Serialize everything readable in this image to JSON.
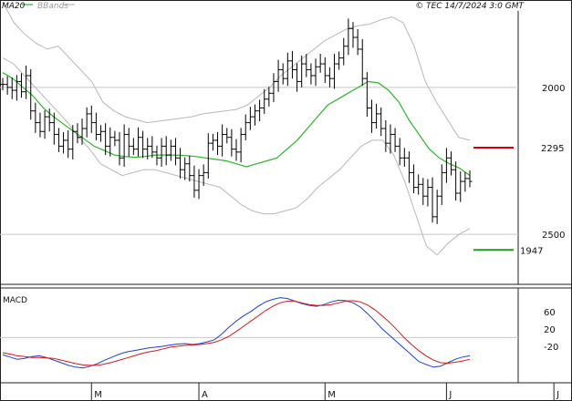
{
  "header": {
    "legend_ma": "MA20",
    "legend_bb": "BBands",
    "copyright": "© TEC 14/7/2024 3:0 GMT"
  },
  "colors": {
    "ma": "#2db52d",
    "bands": "#b8b8b8",
    "resistance": "#d40000",
    "support": "#1f9a1f",
    "macd": "#1f3fd0",
    "signal": "#d81818",
    "price": "#000000"
  },
  "chart_data": [
    {
      "type": "ohlc",
      "panel": "price",
      "ylim": [
        1830,
        2760
      ],
      "grid_y": [
        2000,
        2500
      ],
      "y_ticks": [
        "2500",
        "2000"
      ],
      "x_tick_labels": [
        "M",
        "A",
        "M",
        "J",
        "J"
      ],
      "x_tick_index": [
        19,
        42,
        69,
        95,
        118
      ],
      "levels": [
        {
          "label": "2295",
          "value": 2295,
          "color_key": "resistance"
        },
        {
          "label": "1947",
          "value": 1947,
          "color_key": "support"
        }
      ],
      "closes": [
        2510,
        2500,
        2490,
        2520,
        2485,
        2540,
        2420,
        2380,
        2350,
        2400,
        2380,
        2340,
        2300,
        2320,
        2290,
        2350,
        2330,
        2360,
        2410,
        2380,
        2340,
        2350,
        2300,
        2330,
        2320,
        2260,
        2340,
        2300,
        2290,
        2330,
        2290,
        2300,
        2280,
        2260,
        2300,
        2270,
        2300,
        2260,
        2220,
        2240,
        2200,
        2150,
        2200,
        2210,
        2310,
        2320,
        2300,
        2340,
        2330,
        2290,
        2280,
        2340,
        2380,
        2400,
        2420,
        2430,
        2460,
        2480,
        2520,
        2560,
        2530,
        2590,
        2560,
        2520,
        2580,
        2560,
        2540,
        2570,
        2580,
        2540,
        2530,
        2580,
        2600,
        2640,
        2700,
        2670,
        2630,
        2530,
        2430,
        2380,
        2410,
        2360,
        2310,
        2340,
        2300,
        2260,
        2260,
        2210,
        2160,
        2170,
        2130,
        2160,
        2060,
        2130,
        2210,
        2260,
        2220,
        2140,
        2180,
        2190,
        2180
      ],
      "ma20": [
        2550,
        2530,
        2500,
        2470,
        2430,
        2400,
        2375,
        2350,
        2325,
        2300,
        2285,
        2270,
        2265,
        2262,
        2265,
        2270,
        2270,
        2270,
        2268,
        2265,
        2260,
        2255,
        2250,
        2240,
        2230,
        2240,
        2250,
        2260,
        2290,
        2320,
        2360,
        2400,
        2440,
        2460,
        2480,
        2500,
        2520,
        2515,
        2490,
        2450,
        2390,
        2340,
        2290,
        2260,
        2240,
        2225,
        2200
      ],
      "bb_upper": [
        2790,
        2720,
        2680,
        2650,
        2630,
        2640,
        2600,
        2560,
        2520,
        2450,
        2420,
        2400,
        2390,
        2380,
        2385,
        2390,
        2395,
        2400,
        2410,
        2415,
        2420,
        2425,
        2440,
        2470,
        2500,
        2540,
        2570,
        2600,
        2630,
        2660,
        2680,
        2700,
        2710,
        2715,
        2730,
        2740,
        2720,
        2640,
        2520,
        2450,
        2390,
        2330,
        2320
      ],
      "bb_lower": [
        2600,
        2580,
        2540,
        2500,
        2460,
        2420,
        2380,
        2330,
        2290,
        2240,
        2220,
        2200,
        2210,
        2220,
        2220,
        2210,
        2200,
        2190,
        2180,
        2170,
        2160,
        2130,
        2100,
        2080,
        2070,
        2070,
        2080,
        2090,
        2120,
        2160,
        2190,
        2220,
        2260,
        2300,
        2320,
        2320,
        2270,
        2180,
        2070,
        1960,
        1930,
        1970,
        2000,
        2020
      ]
    },
    {
      "type": "line",
      "panel": "macd",
      "title": "MACD",
      "ylim": [
        -100,
        110
      ],
      "grid_y": [
        0
      ],
      "y_ticks": [
        60,
        20,
        -20
      ],
      "y_tick_labels": [
        "60",
        "20",
        "-20"
      ],
      "series": [
        {
          "color_key": "macd",
          "values": [
            -40,
            -45,
            -50,
            -48,
            -44,
            -42,
            -46,
            -52,
            -58,
            -64,
            -68,
            -70,
            -66,
            -60,
            -52,
            -45,
            -38,
            -33,
            -30,
            -27,
            -24,
            -22,
            -20,
            -17,
            -15,
            -14,
            -16,
            -14,
            -10,
            -5,
            8,
            24,
            38,
            50,
            60,
            72,
            82,
            88,
            92,
            90,
            84,
            78,
            74,
            72,
            76,
            82,
            86,
            85,
            80,
            70,
            55,
            38,
            20,
            5,
            -10,
            -25,
            -40,
            -55,
            -62,
            -68,
            -66,
            -58,
            -50,
            -45,
            -42
          ]
        },
        {
          "color_key": "signal",
          "values": [
            -35,
            -38,
            -42,
            -44,
            -46,
            -46,
            -47,
            -48,
            -52,
            -56,
            -60,
            -63,
            -64,
            -64,
            -61,
            -57,
            -52,
            -47,
            -42,
            -37,
            -33,
            -30,
            -26,
            -22,
            -20,
            -18,
            -17,
            -16,
            -14,
            -11,
            -5,
            3,
            14,
            26,
            38,
            50,
            62,
            72,
            80,
            84,
            84,
            80,
            76,
            74,
            74,
            76,
            80,
            84,
            85,
            82,
            75,
            64,
            50,
            35,
            18,
            0,
            -16,
            -30,
            -42,
            -52,
            -58,
            -59,
            -57,
            -54,
            -50
          ]
        }
      ]
    }
  ]
}
